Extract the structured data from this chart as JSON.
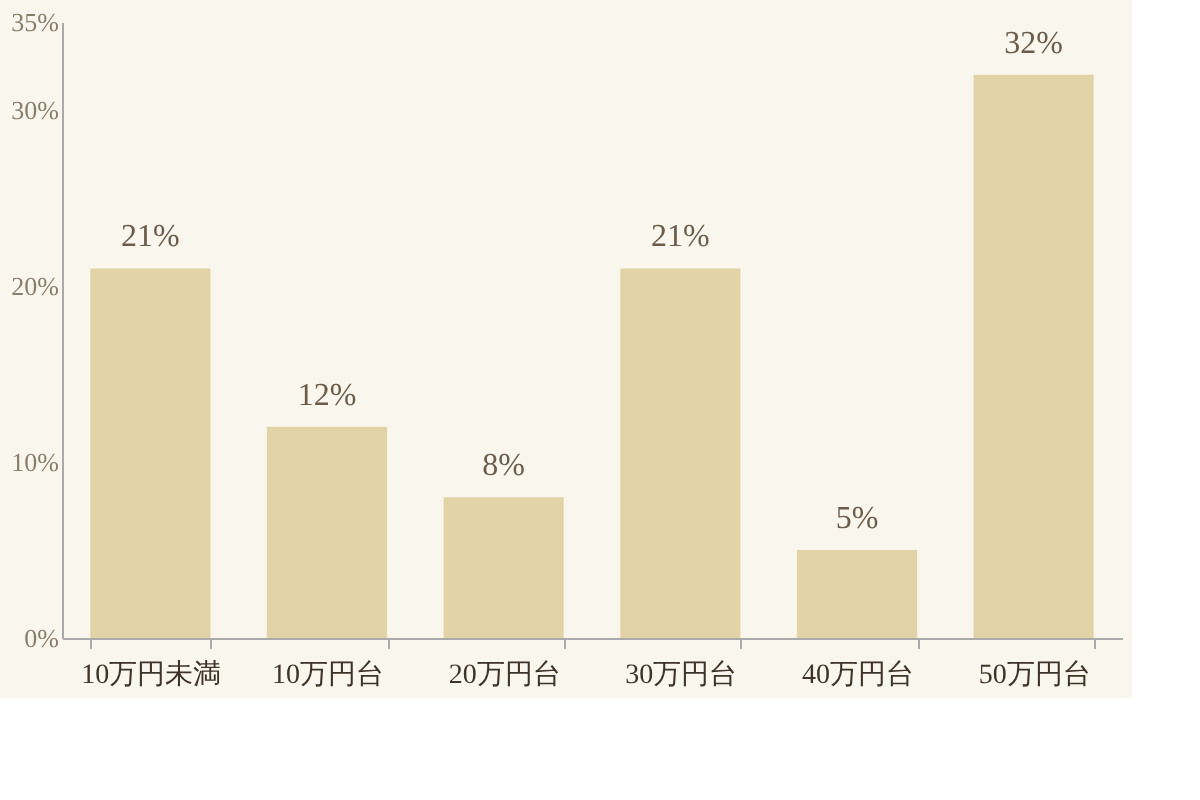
{
  "chart_data": {
    "type": "bar",
    "categories": [
      "10万円未満",
      "10万円台",
      "20万円台",
      "30万円台",
      "40万円台",
      "50万円台"
    ],
    "values": [
      21,
      12,
      8,
      21,
      5,
      32
    ],
    "color": "#e2d3a6",
    "value_labels": [
      "21%",
      "12%",
      "8%",
      "21%",
      "5%",
      "32%"
    ],
    "ylim": [
      0,
      35
    ],
    "yticks": [
      {
        "value": 0,
        "label": "0%"
      },
      {
        "value": 10,
        "label": "10%"
      },
      {
        "value": 20,
        "label": "20%"
      },
      {
        "value": 30,
        "label": "30%"
      },
      {
        "value": 35,
        "label": "35%"
      }
    ],
    "grid": false
  }
}
